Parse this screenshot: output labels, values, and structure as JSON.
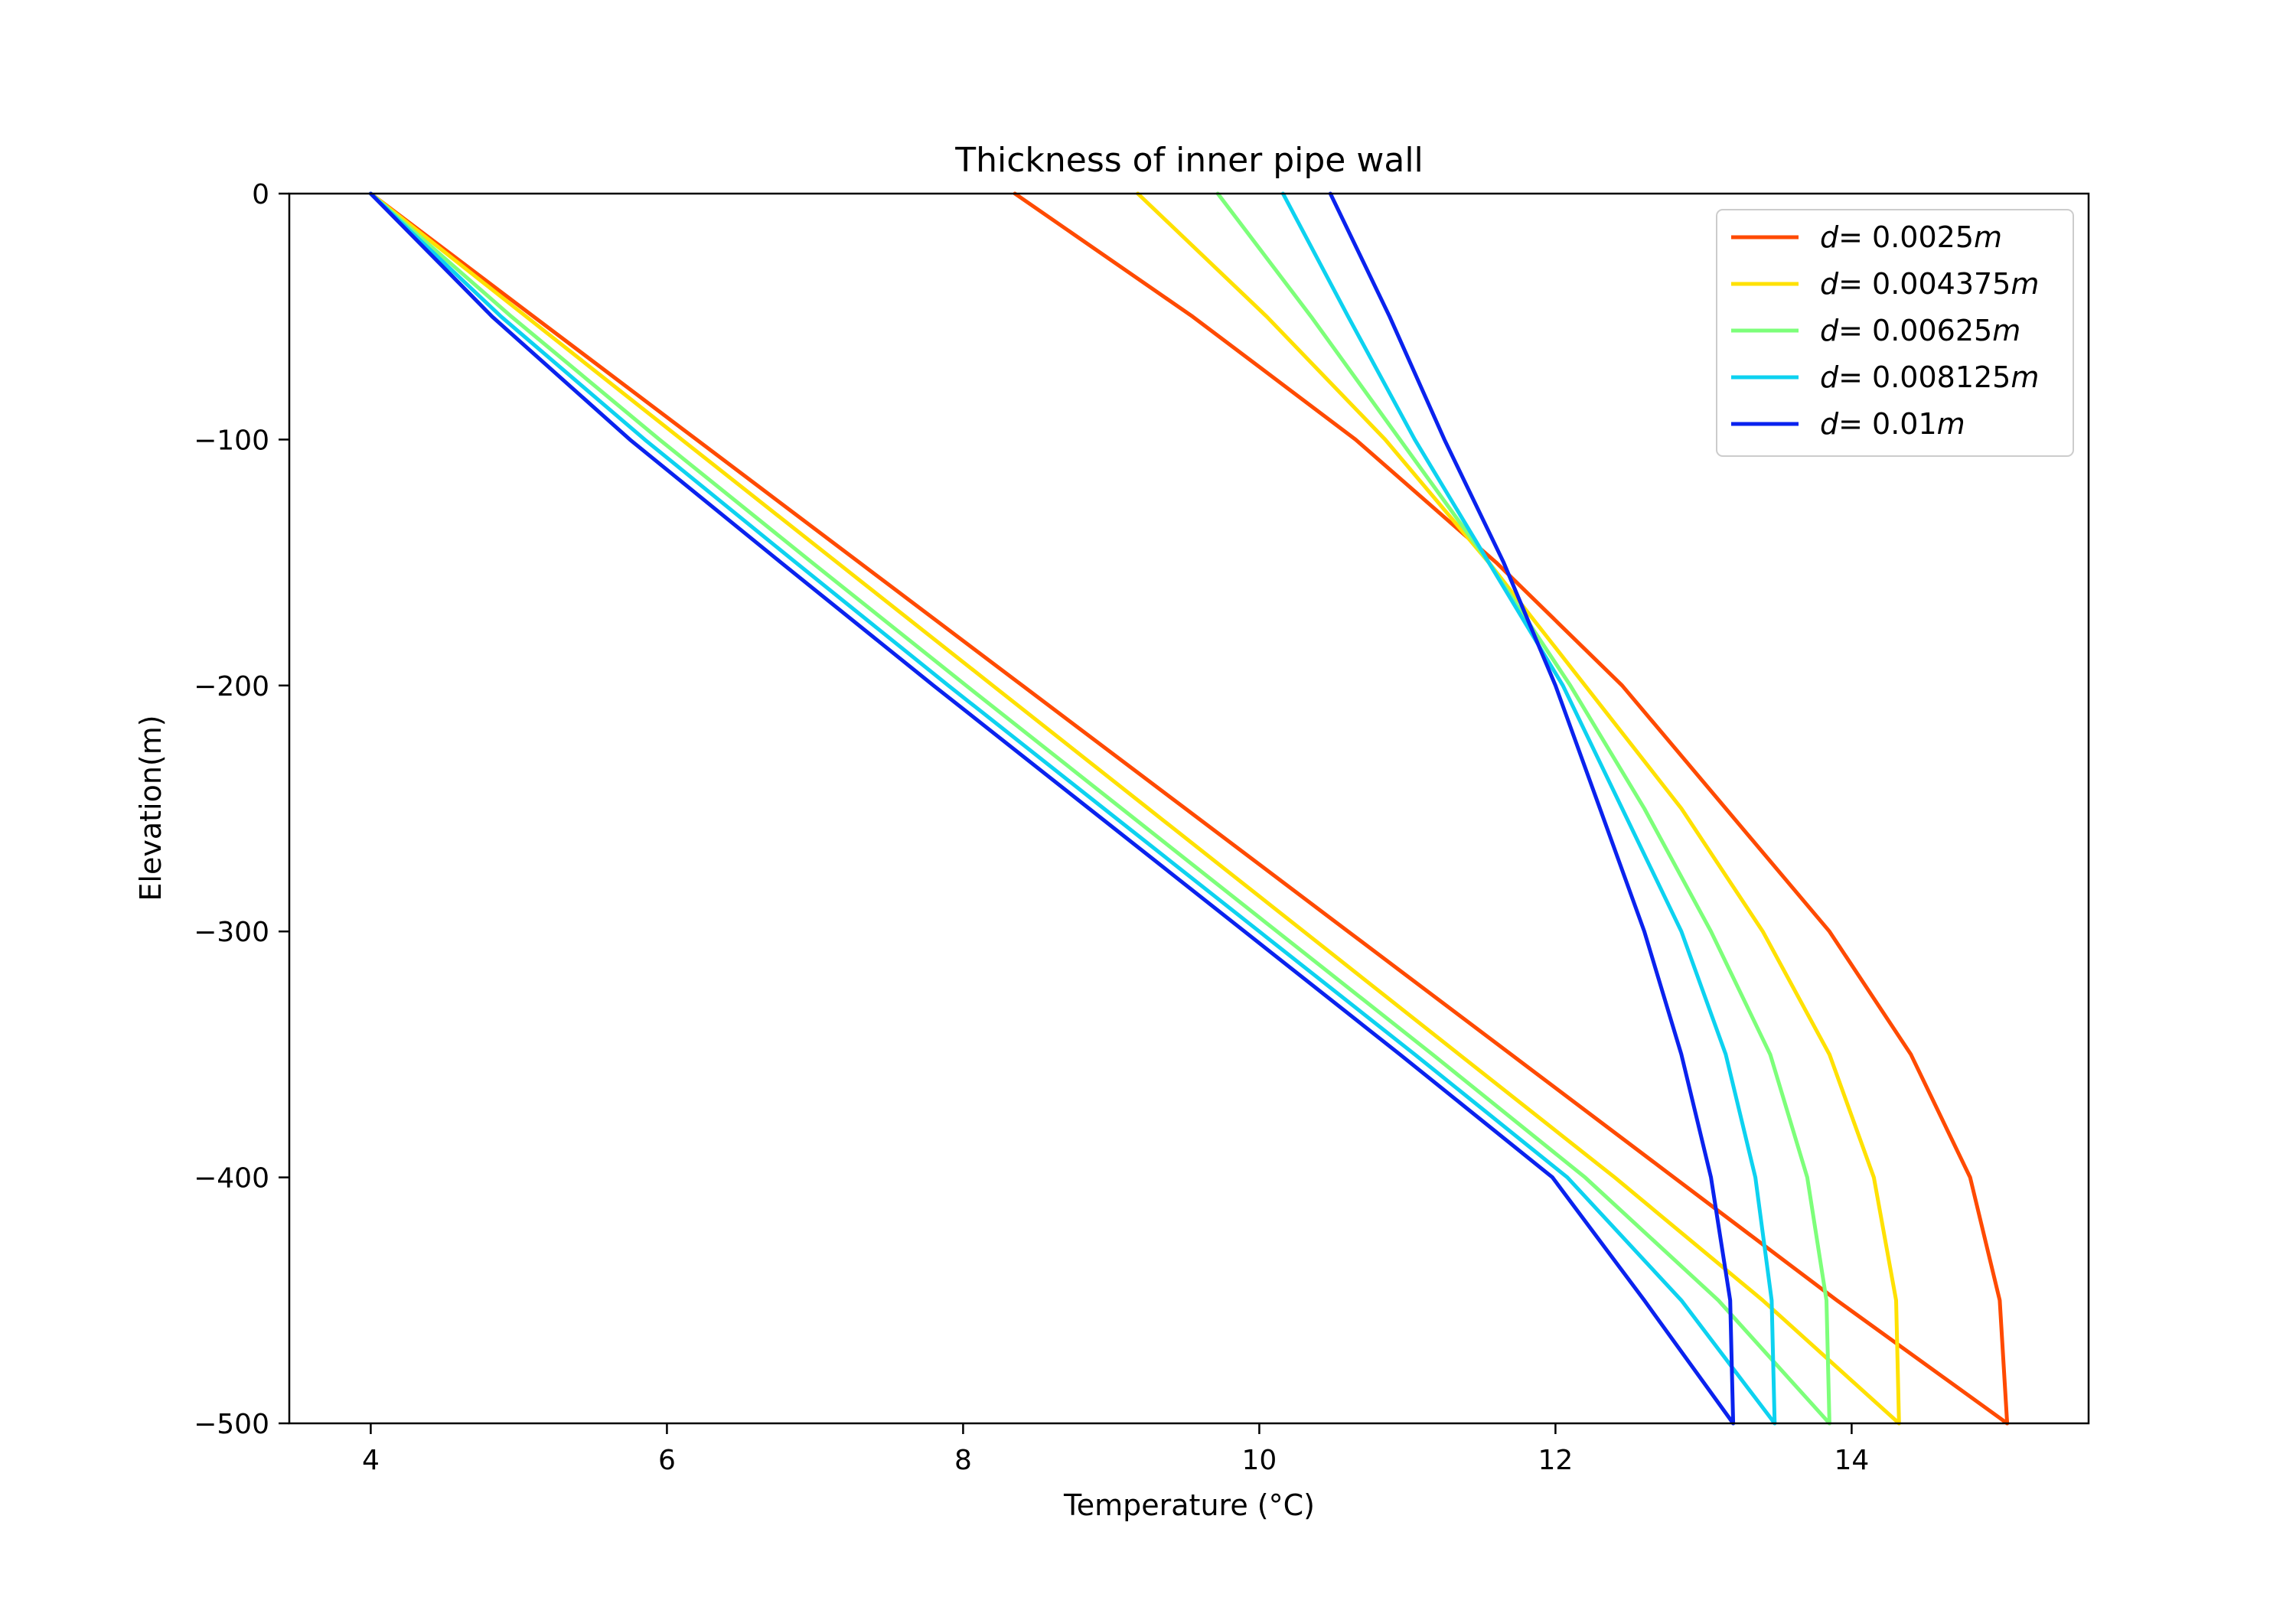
{
  "chart_data": {
    "type": "line",
    "title": "Thickness of inner pipe wall",
    "xlabel": "Temperature (°C)",
    "ylabel": "Elevation(m)",
    "xlim": [
      3.45,
      15.6
    ],
    "ylim": [
      -500,
      0
    ],
    "xticks": [
      4,
      6,
      8,
      10,
      12,
      14
    ],
    "yticks": [
      0,
      -100,
      -200,
      -300,
      -400,
      -500
    ],
    "xtick_labels": [
      "4",
      "6",
      "8",
      "10",
      "12",
      "14"
    ],
    "ytick_labels": [
      "0",
      "−100",
      "−200",
      "−300",
      "−400",
      "−500"
    ],
    "grid": false,
    "legend_position": "top-right",
    "series": [
      {
        "name": "d= 0.0025m",
        "label_prefix": "d",
        "label_value": "= 0.0025",
        "label_unit": "m",
        "color": "#ff4a00",
        "down_leg": [
          [
            4.0,
            0
          ],
          [
            5.1,
            -50
          ],
          [
            6.2,
            -100
          ],
          [
            7.3,
            -150
          ],
          [
            8.4,
            -200
          ],
          [
            9.5,
            -250
          ],
          [
            10.6,
            -300
          ],
          [
            11.7,
            -350
          ],
          [
            12.8,
            -400
          ],
          [
            13.9,
            -450
          ],
          [
            15.05,
            -500
          ]
        ],
        "up_leg": [
          [
            15.05,
            -500
          ],
          [
            15.0,
            -450
          ],
          [
            14.8,
            -400
          ],
          [
            14.4,
            -350
          ],
          [
            13.85,
            -300
          ],
          [
            13.15,
            -250
          ],
          [
            12.45,
            -200
          ],
          [
            11.6,
            -150
          ],
          [
            10.65,
            -100
          ],
          [
            9.55,
            -50
          ],
          [
            8.35,
            0
          ]
        ]
      },
      {
        "name": "d= 0.004375m",
        "label_prefix": "d",
        "label_value": "= 0.004375",
        "label_unit": "m",
        "color": "#ffe100",
        "down_leg": [
          [
            4.0,
            0
          ],
          [
            5.05,
            -50
          ],
          [
            6.1,
            -100
          ],
          [
            7.15,
            -150
          ],
          [
            8.2,
            -200
          ],
          [
            9.25,
            -250
          ],
          [
            10.3,
            -300
          ],
          [
            11.35,
            -350
          ],
          [
            12.4,
            -400
          ],
          [
            13.4,
            -450
          ],
          [
            14.32,
            -500
          ]
        ],
        "up_leg": [
          [
            14.32,
            -500
          ],
          [
            14.3,
            -450
          ],
          [
            14.15,
            -400
          ],
          [
            13.85,
            -350
          ],
          [
            13.4,
            -300
          ],
          [
            12.85,
            -250
          ],
          [
            12.2,
            -200
          ],
          [
            11.55,
            -150
          ],
          [
            10.85,
            -100
          ],
          [
            10.05,
            -50
          ],
          [
            9.18,
            0
          ]
        ]
      },
      {
        "name": "d= 0.00625m",
        "label_prefix": "d",
        "label_value": "= 0.00625",
        "label_unit": "m",
        "color": "#7dff7a",
        "down_leg": [
          [
            4.0,
            0
          ],
          [
            4.95,
            -50
          ],
          [
            5.95,
            -100
          ],
          [
            6.98,
            -150
          ],
          [
            8.02,
            -200
          ],
          [
            9.07,
            -250
          ],
          [
            10.12,
            -300
          ],
          [
            11.17,
            -350
          ],
          [
            12.2,
            -400
          ],
          [
            13.1,
            -450
          ],
          [
            13.85,
            -500
          ]
        ],
        "up_leg": [
          [
            13.85,
            -500
          ],
          [
            13.83,
            -450
          ],
          [
            13.7,
            -400
          ],
          [
            13.45,
            -350
          ],
          [
            13.05,
            -300
          ],
          [
            12.6,
            -250
          ],
          [
            12.1,
            -200
          ],
          [
            11.55,
            -150
          ],
          [
            10.95,
            -100
          ],
          [
            10.35,
            -50
          ],
          [
            9.72,
            0
          ]
        ]
      },
      {
        "name": "d= 0.008125m",
        "label_prefix": "d",
        "label_value": "= 0.008125",
        "label_unit": "m",
        "color": "#0dd2f0",
        "down_leg": [
          [
            4.0,
            0
          ],
          [
            4.88,
            -50
          ],
          [
            5.85,
            -100
          ],
          [
            6.87,
            -150
          ],
          [
            7.9,
            -200
          ],
          [
            8.95,
            -250
          ],
          [
            10.0,
            -300
          ],
          [
            11.05,
            -350
          ],
          [
            12.08,
            -400
          ],
          [
            12.85,
            -450
          ],
          [
            13.48,
            -500
          ]
        ],
        "up_leg": [
          [
            13.48,
            -500
          ],
          [
            13.46,
            -450
          ],
          [
            13.35,
            -400
          ],
          [
            13.15,
            -350
          ],
          [
            12.85,
            -300
          ],
          [
            12.45,
            -250
          ],
          [
            12.05,
            -200
          ],
          [
            11.55,
            -150
          ],
          [
            11.05,
            -100
          ],
          [
            10.6,
            -50
          ],
          [
            10.16,
            0
          ]
        ]
      },
      {
        "name": "d= 0.01m",
        "label_prefix": "d",
        "label_value": "= 0.01",
        "label_unit": "m",
        "color": "#0a22ee",
        "down_leg": [
          [
            4.0,
            0
          ],
          [
            4.82,
            -50
          ],
          [
            5.75,
            -100
          ],
          [
            6.77,
            -150
          ],
          [
            7.8,
            -200
          ],
          [
            8.85,
            -250
          ],
          [
            9.9,
            -300
          ],
          [
            10.95,
            -350
          ],
          [
            11.98,
            -400
          ],
          [
            12.6,
            -450
          ],
          [
            13.2,
            -500
          ]
        ],
        "up_leg": [
          [
            13.2,
            -500
          ],
          [
            13.18,
            -450
          ],
          [
            13.05,
            -400
          ],
          [
            12.85,
            -350
          ],
          [
            12.6,
            -300
          ],
          [
            12.3,
            -250
          ],
          [
            12.0,
            -200
          ],
          [
            11.65,
            -150
          ],
          [
            11.25,
            -100
          ],
          [
            10.88,
            -50
          ],
          [
            10.48,
            0
          ]
        ]
      }
    ]
  }
}
